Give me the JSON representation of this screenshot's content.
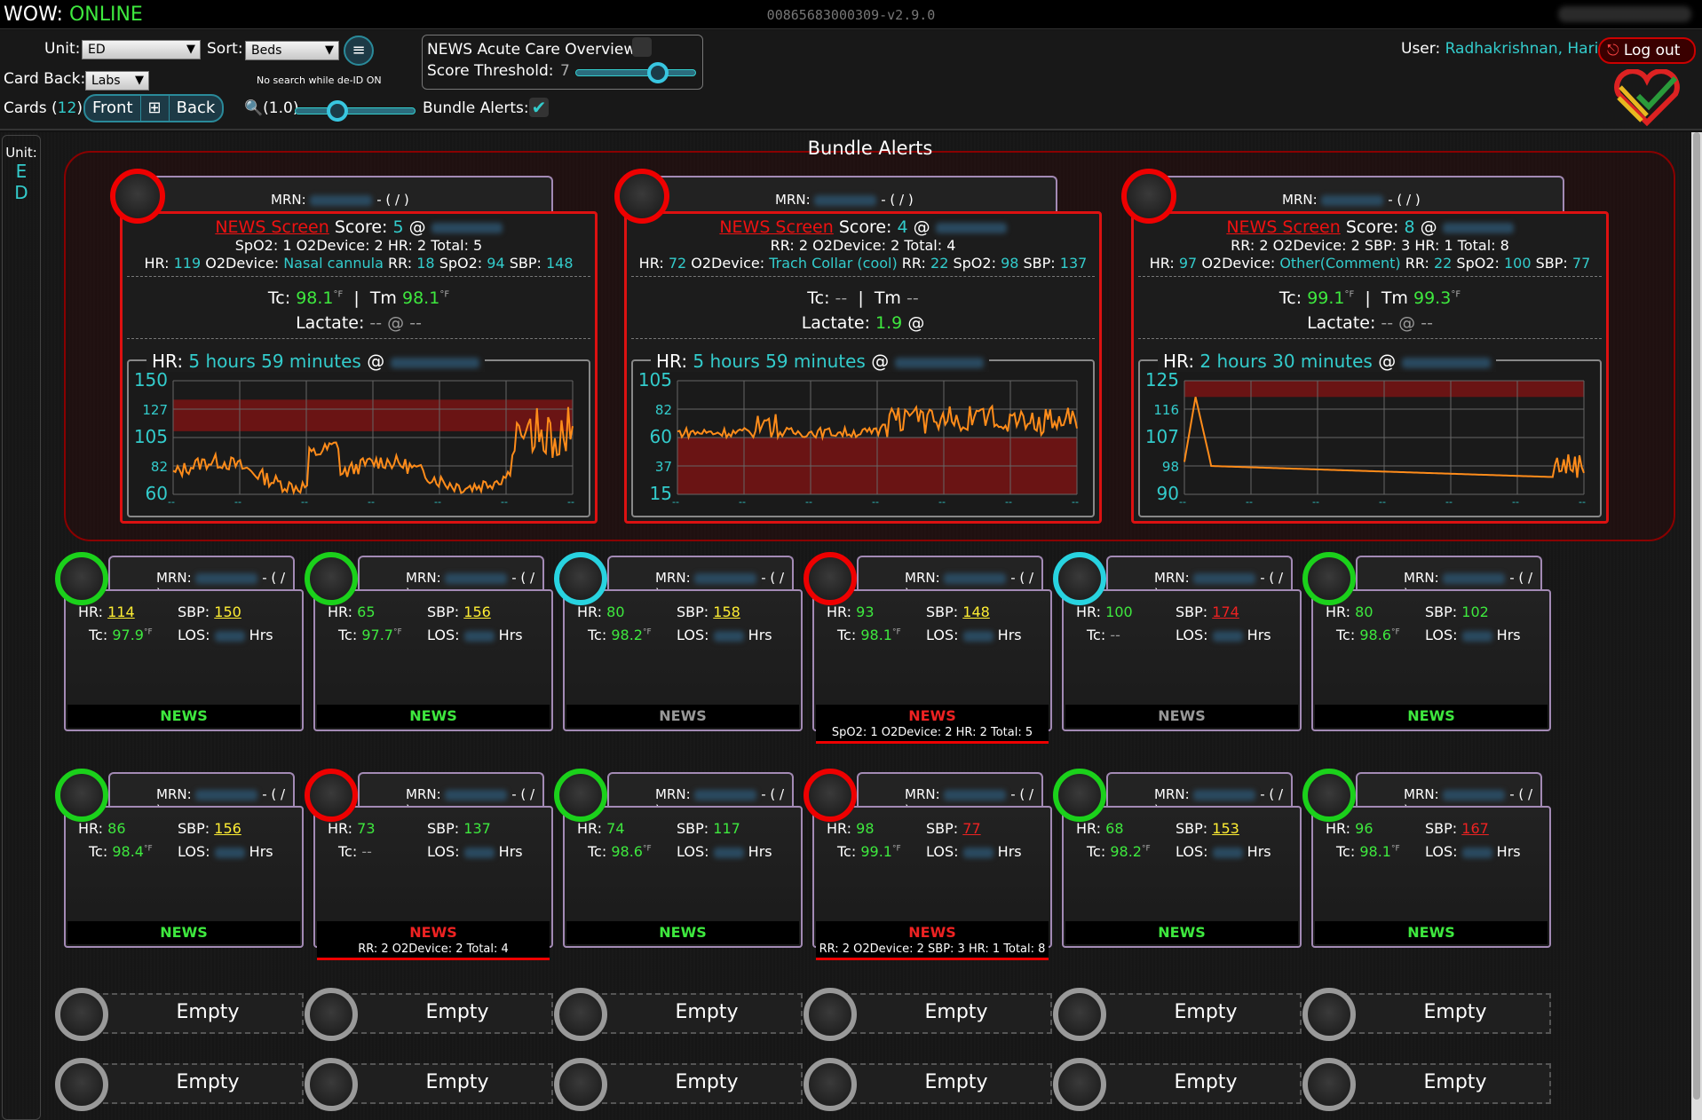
{
  "topbar": {
    "app": "WOW:",
    "status": "ONLINE",
    "version": "00865683000309-v2.9.0"
  },
  "controls": {
    "unit_label": "Unit:",
    "unit_value": "ED",
    "sort_label": "Sort:",
    "sort_value": "Beds",
    "cardback_label": "Card Back:",
    "cardback_value": "Labs",
    "search_note": "No search while de-ID ON",
    "cards_label": "Cards (",
    "cards_count": "12",
    "cards_close": "):",
    "front": "Front",
    "back": "Back",
    "zoom": "(1.0)",
    "news_overview": "NEWS Acute Care Overview:",
    "threshold_label": "Score Threshold:",
    "threshold_value": "7",
    "bundle_alerts": "Bundle Alerts:",
    "user_label": "User:",
    "user_name": "Radhakrishnan, Hari",
    "logout": "Log out"
  },
  "unit_sidebar": {
    "label": "Unit:",
    "letters": [
      "E",
      "D"
    ]
  },
  "bundle": {
    "title": "Bundle Alerts",
    "cards": [
      {
        "mrn": "MRN:",
        "slash": "- ( / )",
        "news": "NEWS Screen",
        "score_label": "Score:",
        "score": "5",
        "at": "@",
        "line2": "SpO2: 1 O2Device: 2 HR: 2 Total: 5",
        "hr": "119",
        "device": "Nasal cannula",
        "rr": "18",
        "spo2": "94",
        "sbp": "148",
        "tc": "98.1",
        "tm": "98.1",
        "unit": "°F",
        "lactate": "-- @ --",
        "graph_label": "HR:",
        "graph_time": "5 hours 59 minutes",
        "graph_at": "@",
        "yticks": [
          "150",
          "127",
          "105",
          "82",
          "60"
        ],
        "ymin": 60,
        "ymax": 150,
        "band": [
          110,
          135
        ]
      },
      {
        "mrn": "MRN:",
        "slash": "- ( / )",
        "news": "NEWS Screen",
        "score_label": "Score:",
        "score": "4",
        "at": "@",
        "line2": "RR: 2 O2Device: 2 Total: 4",
        "hr": "72",
        "device": "Trach Collar (cool)",
        "rr": "22",
        "spo2": "98",
        "sbp": "137",
        "tc": "--",
        "tm": "--",
        "unit": "",
        "lactate_val": "1.9",
        "lactate": "@",
        "graph_label": "HR:",
        "graph_time": "5 hours 59 minutes",
        "graph_at": "@",
        "yticks": [
          "105",
          "82",
          "60",
          "37",
          "15"
        ],
        "ymin": 15,
        "ymax": 105,
        "band": [
          15,
          60
        ]
      },
      {
        "mrn": "MRN:",
        "slash": "- ( / )",
        "news": "NEWS Screen",
        "score_label": "Score:",
        "score": "8",
        "at": "@",
        "line2": "RR: 2 O2Device: 2 SBP: 3 HR: 1 Total: 8",
        "hr": "97",
        "device": "Other(Comment)",
        "rr": "22",
        "spo2": "100",
        "sbp": "77",
        "tc": "99.1",
        "tm": "99.3",
        "unit": "°F",
        "lactate": "-- @ --",
        "graph_label": "HR:",
        "graph_time": "2 hours 30 minutes",
        "graph_at": "@",
        "yticks": [
          "125",
          "116",
          "107",
          "98",
          "90"
        ],
        "ymin": 90,
        "ymax": 125,
        "band": [
          120,
          125
        ]
      }
    ]
  },
  "labels": {
    "hr": "HR:",
    "sbp": "SBP:",
    "tc": "Tc:",
    "tm": "Tm",
    "los": "LOS:",
    "hrs": "Hrs",
    "rr": "RR:",
    "spo2": "SpO2:",
    "o2": "O2Device:",
    "lactate": "Lactate:",
    "news": "NEWS",
    "mrn": "MRN:",
    "slash": "- ( / )",
    "empty": "Empty",
    "deg": "°F"
  },
  "patients": [
    {
      "ring": "green",
      "hr": "114",
      "hr_style": "yel",
      "sbp": "150",
      "sbp_style": "yel",
      "tc": "97.9",
      "news": "g"
    },
    {
      "ring": "green",
      "hr": "65",
      "hr_style": "grn",
      "sbp": "156",
      "sbp_style": "yel",
      "tc": "97.7",
      "news": "g"
    },
    {
      "ring": "cyan",
      "hr": "80",
      "hr_style": "grn",
      "sbp": "158",
      "sbp_style": "yel",
      "tc": "98.2",
      "news": "gr"
    },
    {
      "ring": "red",
      "hr": "93",
      "hr_style": "grn",
      "sbp": "148",
      "sbp_style": "yel",
      "tc": "98.1",
      "news": "r",
      "sub": "SpO2: 1 O2Device: 2 HR: 2 Total: 5"
    },
    {
      "ring": "cyan",
      "hr": "100",
      "hr_style": "grn",
      "sbp": "174",
      "sbp_style": "rline",
      "tc": "--",
      "news": "gr"
    },
    {
      "ring": "green",
      "hr": "80",
      "hr_style": "grn",
      "sbp": "102",
      "sbp_style": "grn",
      "tc": "98.6",
      "news": "g"
    },
    {
      "ring": "green",
      "hr": "86",
      "hr_style": "grn",
      "sbp": "156",
      "sbp_style": "yel",
      "tc": "98.4",
      "news": "g"
    },
    {
      "ring": "red",
      "hr": "73",
      "hr_style": "grn",
      "sbp": "137",
      "sbp_style": "grn",
      "tc": "--",
      "news": "r",
      "sub": "RR: 2 O2Device: 2 Total: 4"
    },
    {
      "ring": "green",
      "hr": "74",
      "hr_style": "grn",
      "sbp": "117",
      "sbp_style": "grn",
      "tc": "98.6",
      "news": "g"
    },
    {
      "ring": "red",
      "hr": "98",
      "hr_style": "grn",
      "sbp": "77",
      "sbp_style": "rline",
      "tc": "99.1",
      "news": "r",
      "sub": "RR: 2 O2Device: 2 SBP: 3 HR: 1 Total: 8"
    },
    {
      "ring": "green",
      "hr": "68",
      "hr_style": "grn",
      "sbp": "153",
      "sbp_style": "yel",
      "tc": "98.2",
      "news": "g"
    },
    {
      "ring": "green",
      "hr": "96",
      "hr_style": "grn",
      "sbp": "167",
      "sbp_style": "rline",
      "tc": "98.1",
      "news": "g"
    }
  ],
  "empty_count": 12,
  "colors": {
    "accent": "#33cccc",
    "ok": "#3ee83e",
    "alert": "#ee2222",
    "warn": "#ffee33",
    "border": "#a38ab5"
  }
}
